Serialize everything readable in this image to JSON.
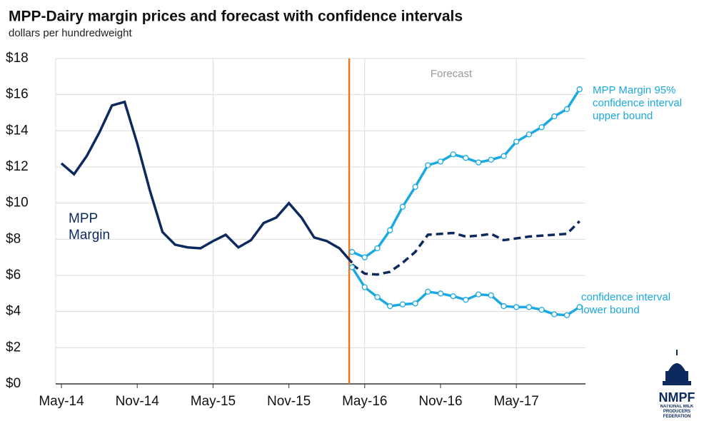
{
  "chart_data": {
    "type": "line",
    "title": "MPP-Dairy margin prices and forecast with confidence intervals",
    "subtitle": "dollars per hundredweight",
    "annotations": [
      "Forecast"
    ],
    "categories": [
      "May-14",
      null,
      null,
      null,
      null,
      null,
      "Nov-14",
      null,
      null,
      null,
      null,
      null,
      "May-15",
      null,
      null,
      null,
      null,
      null,
      "Nov-15",
      null,
      null,
      null,
      null,
      null,
      "May-16",
      null,
      null,
      null,
      null,
      null,
      "Nov-16",
      null,
      null,
      null,
      null,
      null,
      "May-17",
      null,
      null,
      null,
      null,
      null
    ],
    "ylim": [
      0,
      18
    ],
    "yticks": [
      {
        "value": 0,
        "label": "$0"
      },
      {
        "value": 2,
        "label": "$2"
      },
      {
        "value": 4,
        "label": "$4"
      },
      {
        "value": 6,
        "label": "$6"
      },
      {
        "value": 8,
        "label": "$8"
      },
      {
        "value": 10,
        "label": "$10"
      },
      {
        "value": 12,
        "label": "$12"
      },
      {
        "value": 14,
        "label": "$14"
      },
      {
        "value": 16,
        "label": "$16"
      },
      {
        "value": 18,
        "label": "$18"
      }
    ],
    "grid": true,
    "series": [
      {
        "name": "MPP Margin",
        "color": "#0d2a5e",
        "values": [
          12.2,
          11.6,
          12.6,
          13.9,
          15.4,
          15.6,
          13.3,
          10.7,
          8.4,
          7.7,
          7.55,
          7.5,
          7.9,
          8.25,
          7.55,
          7.95,
          8.9,
          9.2,
          10.0,
          9.2,
          8.1,
          7.9,
          7.5,
          6.7,
          null,
          null,
          null,
          null,
          null,
          null,
          null,
          null,
          null,
          null,
          null,
          null,
          null,
          null,
          null,
          null,
          null,
          null
        ]
      },
      {
        "color": "#0d2a5e",
        "dashed": true,
        "values": [
          null,
          null,
          null,
          null,
          null,
          null,
          null,
          null,
          null,
          null,
          null,
          null,
          null,
          null,
          null,
          null,
          null,
          null,
          null,
          null,
          null,
          null,
          null,
          6.6,
          6.1,
          6.05,
          6.2,
          6.7,
          7.3,
          8.25,
          8.3,
          8.35,
          8.15,
          8.2,
          8.3,
          7.95,
          8.05,
          8.15,
          8.2,
          8.25,
          8.3,
          9.0
        ]
      },
      {
        "name": "MPP Margin 95% confidence interval upper bound",
        "color": "#1ba9e1",
        "markers": true,
        "values": [
          null,
          null,
          null,
          null,
          null,
          null,
          null,
          null,
          null,
          null,
          null,
          null,
          null,
          null,
          null,
          null,
          null,
          null,
          null,
          null,
          null,
          null,
          null,
          7.3,
          7.0,
          7.5,
          8.5,
          9.8,
          10.9,
          12.1,
          12.3,
          12.7,
          12.5,
          12.25,
          12.4,
          12.6,
          13.4,
          13.8,
          14.2,
          14.8,
          15.2,
          16.3
        ]
      },
      {
        "name": "confidence interval lower bound",
        "color": "#1ba9e1",
        "markers": true,
        "values": [
          null,
          null,
          null,
          null,
          null,
          null,
          null,
          null,
          null,
          null,
          null,
          null,
          null,
          null,
          null,
          null,
          null,
          null,
          null,
          null,
          null,
          null,
          null,
          6.45,
          5.35,
          4.8,
          4.3,
          4.4,
          4.45,
          5.1,
          5.0,
          4.85,
          4.65,
          4.95,
          4.9,
          4.3,
          4.25,
          4.25,
          4.1,
          3.85,
          3.8,
          4.25
        ]
      }
    ]
  },
  "logo": {
    "name": "NMPF",
    "tagline": "NATIONAL MILK PRODUCERS FEDERATION"
  }
}
